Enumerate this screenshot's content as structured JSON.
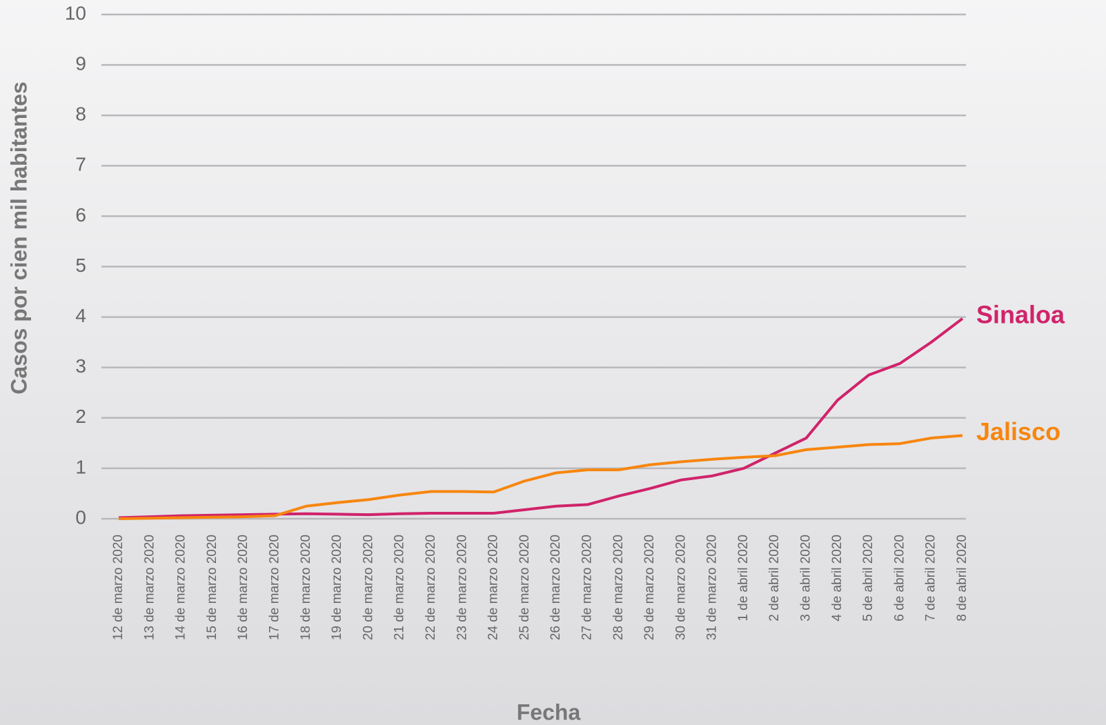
{
  "chart_data": {
    "type": "line",
    "x_label": "Fecha",
    "y_label": "Casos por cien mil habitantes",
    "categories": [
      "12 de marzo 2020",
      "13 de marzo 2020",
      "14 de marzo 2020",
      "15 de marzo 2020",
      "16 de marzo 2020",
      "17 de marzo 2020",
      "18 de marzo 2020",
      "19 de marzo 2020",
      "20 de marzo 2020",
      "21 de marzo 2020",
      "22 de marzo 2020",
      "23 de marzo 2020",
      "24 de marzo 2020",
      "25 de marzo 2020",
      "26 de marzo 2020",
      "27 de marzo 2020",
      "28 de marzo 2020",
      "29 de marzo 2020",
      "30 de marzo 2020",
      "31 de marzo 2020",
      "1 de abril 2020",
      "2 de abril 2020",
      "3 de abril 2020",
      "4 de abril 2020",
      "5 de abril 2020",
      "6 de abril 2020",
      "7 de abril 2020",
      "8 de abril 2020"
    ],
    "series": [
      {
        "name": "Sinaloa",
        "color": "#d0236a",
        "values": [
          0.02,
          0.04,
          0.06,
          0.07,
          0.08,
          0.09,
          0.1,
          0.09,
          0.08,
          0.1,
          0.11,
          0.11,
          0.11,
          0.18,
          0.25,
          0.28,
          0.45,
          0.6,
          0.77,
          0.85,
          1.0,
          1.3,
          1.6,
          2.35,
          2.85,
          3.08,
          3.5,
          3.97
        ]
      },
      {
        "name": "Jalisco",
        "color": "#f7860f",
        "values": [
          0,
          0.01,
          0.02,
          0.03,
          0.04,
          0.06,
          0.25,
          0.32,
          0.38,
          0.47,
          0.54,
          0.54,
          0.53,
          0.75,
          0.91,
          0.97,
          0.97,
          1.07,
          1.13,
          1.18,
          1.22,
          1.25,
          1.37,
          1.42,
          1.47,
          1.49,
          1.6,
          1.65
        ]
      }
    ],
    "ylim": [
      0,
      10
    ],
    "yticks": [
      0,
      1,
      2,
      3,
      4,
      5,
      6,
      7,
      8,
      9,
      10
    ],
    "grid": true
  }
}
